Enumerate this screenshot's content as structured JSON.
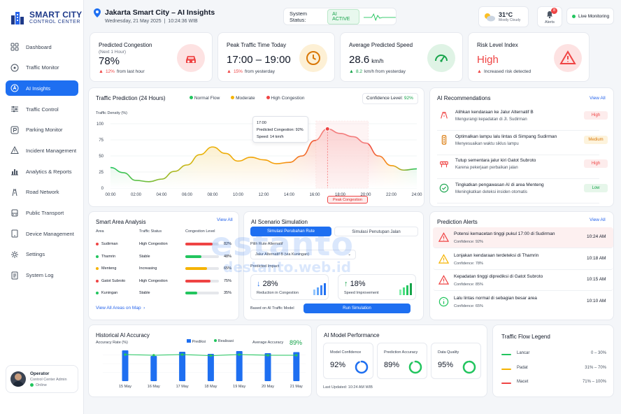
{
  "brand": {
    "title": "SMART CITY",
    "subtitle": "CONTROL CENTER"
  },
  "nav": [
    {
      "label": "Dashboard",
      "icon": "dashboard-icon",
      "active": false
    },
    {
      "label": "Traffic Monitor",
      "icon": "traffic-icon",
      "active": false
    },
    {
      "label": "AI Insights",
      "icon": "ai-icon",
      "active": true
    },
    {
      "label": "Traffic Control",
      "icon": "sliders-icon",
      "active": false
    },
    {
      "label": "Parking Monitor",
      "icon": "parking-icon",
      "active": false
    },
    {
      "label": "Incident Management",
      "icon": "warning-icon",
      "active": false
    },
    {
      "label": "Analytics & Reports",
      "icon": "analytics-icon",
      "active": false
    },
    {
      "label": "Road Network",
      "icon": "road-icon",
      "active": false
    },
    {
      "label": "Public Transport",
      "icon": "bus-icon",
      "active": false
    },
    {
      "label": "Device Management",
      "icon": "device-icon",
      "active": false
    },
    {
      "label": "Settings",
      "icon": "gear-icon",
      "active": false
    },
    {
      "label": "System Log",
      "icon": "log-icon",
      "active": false
    }
  ],
  "operator": {
    "name": "Operator",
    "role": "Control Center Admin",
    "status": "Online"
  },
  "header": {
    "title": "Jakarta Smart City – AI Insights",
    "date": "Wednesday, 21 May 2025",
    "time": "10:24:36 WIB",
    "system_status_label": "System Status:",
    "system_status_value": "AI ACTIVE",
    "weather_temp": "31°C",
    "weather_desc": "Mostly Cloudy",
    "alerts_label": "Alerts",
    "alerts_count": "8",
    "live_label": "Live Monitoring"
  },
  "kpis": [
    {
      "title": "Predicted Congestion",
      "sub": "(Next 1 Hour)",
      "value": "78%",
      "unit": "",
      "trend_value": "12%",
      "trend_text": "from last hour",
      "trend_color": "#ef4444",
      "icon": "car-icon"
    },
    {
      "title": "Peak Traffic Time Today",
      "sub": "",
      "value": "17:00 – 19:00",
      "unit": "",
      "trend_value": "15%",
      "trend_text": "from yesterday",
      "trend_color": "#ef4444",
      "icon": "clock-icon"
    },
    {
      "title": "Average Predicted Speed",
      "sub": "",
      "value": "28.6",
      "unit": "km/h",
      "trend_value": "8.2",
      "trend_text": "km/h from yesterday",
      "trend_color": "#16a34a",
      "icon": "speedometer-icon"
    },
    {
      "title": "Risk Level Index",
      "sub": "",
      "value": "High",
      "unit": "",
      "trend_value": "",
      "trend_text": "Increased risk detected",
      "trend_color": "#ef4444",
      "icon": "warning-icon"
    }
  ],
  "prediction": {
    "title": "Traffic Prediction (24 Hours)",
    "legend": [
      "Normal Flow",
      "Moderate",
      "High Congestion"
    ],
    "confidence_label": "Confidence Level:",
    "confidence_value": "92%",
    "tooltip_time": "17:00",
    "tooltip_congestion": "Predicted Congestion: 92%",
    "tooltip_speed": "Speed: 14 km/h",
    "peak_label": "Peak Congestion"
  },
  "chart_data": {
    "type": "area",
    "ylabel": "Traffic Density (%)",
    "ylim": [
      0,
      100
    ],
    "yticks": [
      "0",
      "25",
      "50",
      "75",
      "100"
    ],
    "xticks": [
      "00:00",
      "02:00",
      "04:00",
      "06:00",
      "08:00",
      "10:00",
      "12:00",
      "14:00",
      "16:00",
      "18:00",
      "20:00",
      "22:00",
      "24:00"
    ],
    "x": [
      0,
      1,
      2,
      3,
      4,
      5,
      6,
      7,
      8,
      9,
      10,
      11,
      12,
      13,
      14,
      15,
      16,
      17,
      18,
      19,
      20,
      21,
      22,
      23,
      24
    ],
    "values": [
      32,
      24,
      12,
      10,
      14,
      26,
      36,
      52,
      64,
      54,
      42,
      48,
      44,
      38,
      40,
      50,
      74,
      92,
      85,
      80,
      70,
      50,
      35,
      28,
      30
    ],
    "grid": true
  },
  "recommendations": {
    "title": "AI Recommendations",
    "view_all": "View All",
    "items": [
      {
        "title": "Alihkan kendaraan ke Jalur Alternatif B",
        "desc": "Mengurangi kepadatan di Jl. Sudirman",
        "priority": "High",
        "icon": "route-icon",
        "color": "#ef4444",
        "bg": "#fdecec"
      },
      {
        "title": "Optimalkan lampu lalu lintas di Simpang Sudirman",
        "desc": "Menyesuaikan waktu siklus lampu",
        "priority": "Medium",
        "icon": "traffic-light-icon",
        "color": "#d97706",
        "bg": "#fdf3dc"
      },
      {
        "title": "Tutup sementara jalur kiri Gatot Subroto",
        "desc": "Karena pekerjaan perbaikan jalan",
        "priority": "High",
        "icon": "road-block-icon",
        "color": "#ef4444",
        "bg": "#fdecec"
      },
      {
        "title": "Tingkatkan pengawasan AI di area Menteng",
        "desc": "Meningkatkan deteksi insiden otomatis",
        "priority": "Low",
        "icon": "check-circle-icon",
        "color": "#16a34a",
        "bg": "#e6f6ea"
      }
    ]
  },
  "areas": {
    "title": "Smart Area Analysis",
    "view_all": "View All",
    "columns": [
      "Area",
      "Traffic Status",
      "Congestion Level"
    ],
    "rows": [
      {
        "area": "Sudirman",
        "status": "High Congestion",
        "level": 82,
        "level_label": "82%",
        "color": "#ef4444"
      },
      {
        "area": "Thamrin",
        "status": "Stable",
        "level": 48,
        "level_label": "48%",
        "color": "#22c55e"
      },
      {
        "area": "Menteng",
        "status": "Increasing",
        "level": 65,
        "level_label": "65%",
        "color": "#f5b301"
      },
      {
        "area": "Gatot Subroto",
        "status": "High Congestion",
        "level": 75,
        "level_label": "75%",
        "color": "#ef4444"
      },
      {
        "area": "Kuningan",
        "status": "Stable",
        "level": 35,
        "level_label": "35%",
        "color": "#22c55e"
      }
    ],
    "footer": "View All Areas on Map"
  },
  "scenario": {
    "title": "AI Scenario Simulation",
    "tabs": [
      "Simulasi Perubahan Rute",
      "Simulasi Penutupan Jalan"
    ],
    "route_label": "Pilih Rute Alternatif",
    "route_value": "Jalur Alternatif B (via Kuningan)",
    "impact_label": "Predicted Impact",
    "impact": [
      {
        "value": "28%",
        "label": "Reduction in Congestion",
        "arrow": "↓"
      },
      {
        "value": "18%",
        "label": "Speed Improvement",
        "arrow": "↑"
      }
    ],
    "based_on": "Based on AI Traffic Model",
    "run_label": "Run Simulation"
  },
  "alerts_panel": {
    "title": "Prediction Alerts",
    "view_all": "View All",
    "items": [
      {
        "title": "Potensi kemacetan tinggi pukul 17:00 di Sudirman",
        "conf": "Confidence: 92%",
        "time": "10:24 AM",
        "color": "#ef4444",
        "bg": "#fdf0f0",
        "icon": "warning-icon"
      },
      {
        "title": "Lonjakan kendaraan terdeteksi di Thamrin",
        "conf": "Confidence: 78%",
        "time": "10:18 AM",
        "color": "#f5b301",
        "bg": "#ffffff",
        "icon": "warning-icon"
      },
      {
        "title": "Kepadatan tinggi diprediksi di Gatot Subroto",
        "conf": "Confidence: 85%",
        "time": "10:15 AM",
        "color": "#ef4444",
        "bg": "#ffffff",
        "icon": "warning-icon"
      },
      {
        "title": "Lalu lintas normal di sebagian besar area",
        "conf": "Confidence: 65%",
        "time": "10:10 AM",
        "color": "#22c55e",
        "bg": "#ffffff",
        "icon": "info-icon"
      }
    ]
  },
  "history": {
    "title": "Historical AI Accuracy",
    "ylabel": "Accuracy Rate (%)",
    "legend": [
      "Prediksi",
      "Realisasi"
    ],
    "average_label": "Average Accuracy",
    "average_value": "89%",
    "chart_data": {
      "type": "bar",
      "categories": [
        "15 May",
        "16 May",
        "17 May",
        "18 May",
        "19 May",
        "20 May",
        "21 May"
      ],
      "series": [
        {
          "name": "Prediksi",
          "values": [
            88,
            72,
            84,
            78,
            86,
            80,
            83
          ]
        },
        {
          "name": "Realisasi",
          "values": [
            76,
            74,
            76,
            73,
            76,
            74,
            74
          ]
        }
      ],
      "ylim": [
        0,
        100
      ]
    }
  },
  "model": {
    "title": "AI Model Performance",
    "boxes": [
      {
        "label": "Model Confidence",
        "value": "92%",
        "pct": 92,
        "color": "#1e6ff1"
      },
      {
        "label": "Prediction Accuracy",
        "value": "89%",
        "pct": 89,
        "color": "#22c55e"
      },
      {
        "label": "Data Quality",
        "value": "95%",
        "pct": 95,
        "color": "#22c55e"
      }
    ],
    "updated": "Last Updated: 10:24 AM WIB"
  },
  "flow_legend": {
    "title": "Traffic Flow Legend",
    "items": [
      {
        "label": "Lancar",
        "range": "0 – 30%",
        "color": "#22c55e"
      },
      {
        "label": "Padat",
        "range": "31% – 70%",
        "color": "#f5b301"
      },
      {
        "label": "Macet",
        "range": "71% – 100%",
        "color": "#ef4444"
      }
    ]
  },
  "watermark": {
    "brand": "estanto",
    "url": "destanto.web.id"
  }
}
